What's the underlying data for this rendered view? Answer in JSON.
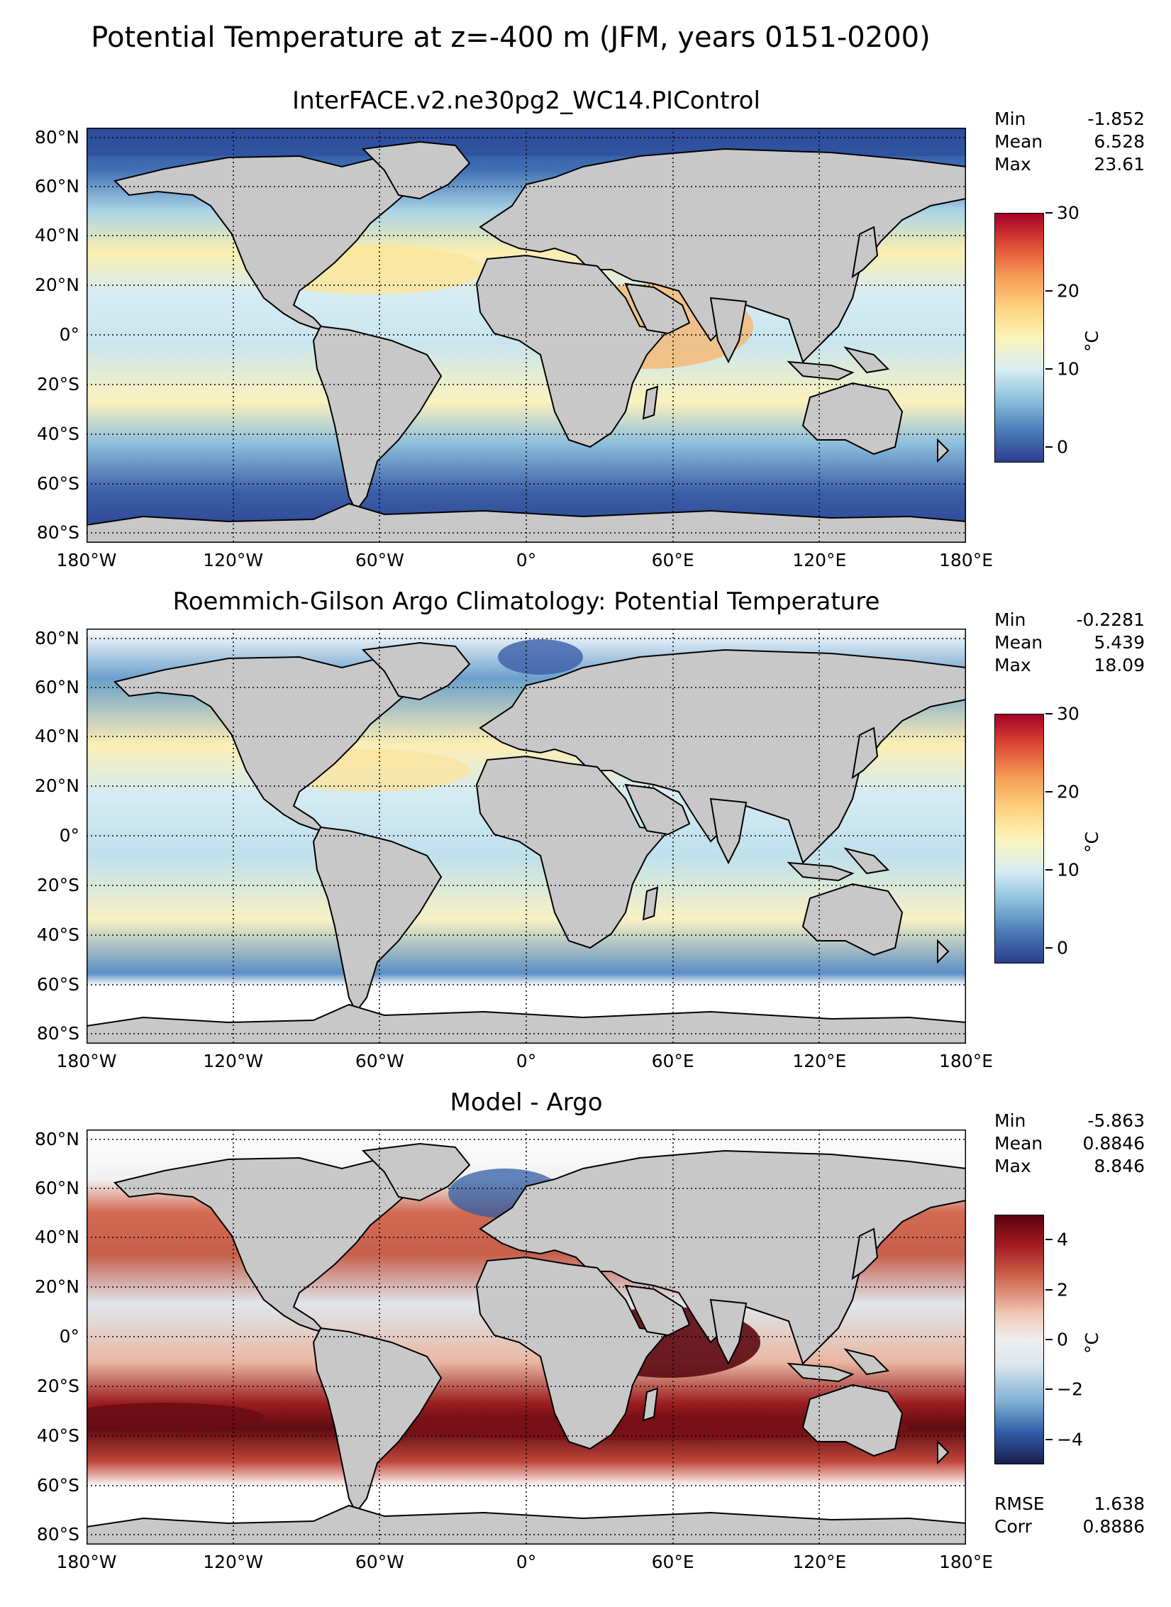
{
  "figure": {
    "suptitle": "Potential Temperature at z=-400 m (JFM, years 0151-0200)"
  },
  "axes": {
    "lon_ticks": [
      "180°W",
      "120°W",
      "60°W",
      "0°",
      "60°E",
      "120°E",
      "180°E"
    ],
    "lat_ticks": [
      "80°N",
      "60°N",
      "40°N",
      "20°N",
      "0°",
      "20°S",
      "40°S",
      "60°S",
      "80°S"
    ]
  },
  "panels": [
    {
      "title": "InterFACE.v2.ne30pg2_WC14.PIControl",
      "stats": [
        {
          "label": "Min",
          "value": "-1.852"
        },
        {
          "label": "Mean",
          "value": "6.528"
        },
        {
          "label": "Max",
          "value": "23.61"
        }
      ],
      "colorbar": {
        "ticks": [
          "30",
          "20",
          "10",
          "0"
        ],
        "unit": "°C",
        "range": [
          -2,
          30
        ],
        "colors": [
          "#2c3d8f",
          "#4a7bb8",
          "#8cc0dc",
          "#d9eef3",
          "#fbf4b8",
          "#fdd17e",
          "#f59a55",
          "#dd4a34",
          "#a50026"
        ]
      }
    },
    {
      "title": "Roemmich-Gilson Argo Climatology: Potential Temperature",
      "stats": [
        {
          "label": "Min",
          "value": "-0.2281"
        },
        {
          "label": "Mean",
          "value": "5.439"
        },
        {
          "label": "Max",
          "value": "18.09"
        }
      ],
      "colorbar": {
        "ticks": [
          "30",
          "20",
          "10",
          "0"
        ],
        "unit": "°C",
        "range": [
          -2,
          30
        ],
        "colors": [
          "#2c3d8f",
          "#4a7bb8",
          "#8cc0dc",
          "#d9eef3",
          "#fbf4b8",
          "#fdd17e",
          "#f59a55",
          "#dd4a34",
          "#a50026"
        ]
      }
    },
    {
      "title": "Model - Argo",
      "stats": [
        {
          "label": "Min",
          "value": "-5.863"
        },
        {
          "label": "Mean",
          "value": "0.8846"
        },
        {
          "label": "Max",
          "value": "8.846"
        }
      ],
      "colorbar": {
        "ticks": [
          "4",
          "2",
          "0",
          "−2",
          "−4"
        ],
        "unit": "°C",
        "range": [
          -5,
          5
        ],
        "colors": [
          "#1a1f4f",
          "#2f5da6",
          "#7fb0d4",
          "#dce7ee",
          "#eeeeee",
          "#f0c9b8",
          "#d0664e",
          "#a51c21",
          "#5c0010"
        ]
      },
      "metrics": [
        {
          "label": "RMSE",
          "value": "1.638"
        },
        {
          "label": "Corr",
          "value": "0.8886"
        }
      ]
    }
  ]
}
